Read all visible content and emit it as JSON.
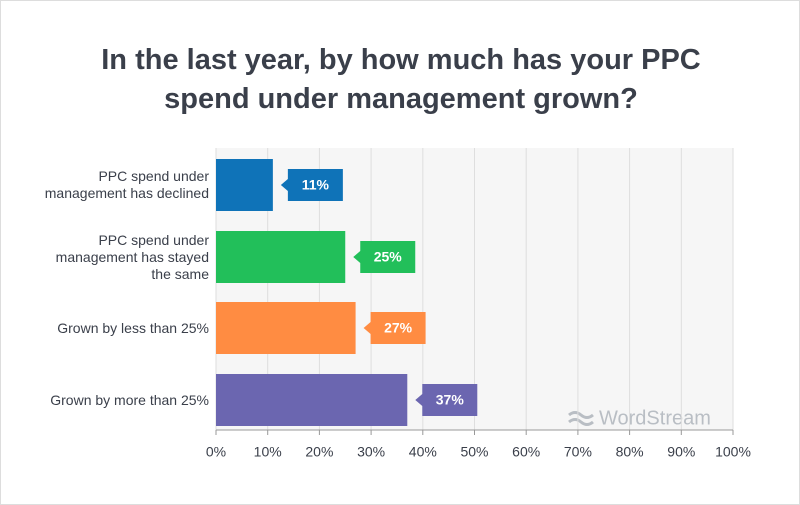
{
  "chart_data": {
    "type": "bar",
    "orientation": "horizontal",
    "title": "In the last year, by how much has your PPC spend under management grown?",
    "categories": [
      "PPC spend under management has declined",
      "PPC spend under management has stayed the same",
      "Grown by less than 25%",
      "Grown by more than 25%"
    ],
    "series": [
      {
        "name": null,
        "colors": [
          "#0f73b8",
          "#22bf5a",
          "#ff8c42",
          "#6b66b0"
        ],
        "values": [
          11,
          25,
          27,
          37
        ],
        "value_labels": [
          "11%",
          "25%",
          "27%",
          "37%"
        ]
      }
    ],
    "xlim": [
      0,
      100
    ],
    "xticks": [
      {
        "value": 0,
        "label": "0%"
      },
      {
        "value": 10,
        "label": "10%"
      },
      {
        "value": 20,
        "label": "20%"
      },
      {
        "value": 30,
        "label": "30%"
      },
      {
        "value": 40,
        "label": "40%"
      },
      {
        "value": 50,
        "label": "50%"
      },
      {
        "value": 60,
        "label": "60%"
      },
      {
        "value": 70,
        "label": "70%"
      },
      {
        "value": 80,
        "label": "80%"
      },
      {
        "value": 90,
        "label": "90%"
      },
      {
        "value": 100,
        "label": "100%"
      }
    ],
    "grid": true,
    "watermark": "WordStream"
  }
}
